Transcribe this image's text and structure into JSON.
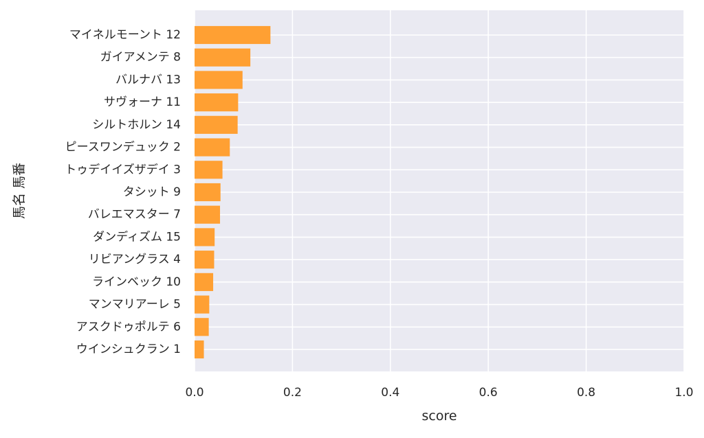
{
  "chart_data": {
    "type": "bar",
    "orientation": "horizontal",
    "categories": [
      "マイネルモーント 12",
      "ガイアメンテ 8",
      "バルナバ 13",
      "サヴォーナ 11",
      "シルトホルン 14",
      "ピースワンデュック 2",
      "トゥデイイズザデイ 3",
      "タシット 9",
      "バレエマスター 7",
      "ダンディズム 15",
      "リビアングラス 4",
      "ラインベック 10",
      "マンマリアーレ 5",
      "アスクドゥポルテ 6",
      "ウインシュクラン 1"
    ],
    "values": [
      0.155,
      0.114,
      0.098,
      0.089,
      0.088,
      0.072,
      0.057,
      0.053,
      0.052,
      0.041,
      0.04,
      0.038,
      0.03,
      0.029,
      0.019
    ],
    "xlabel": "score",
    "ylabel": "馬名 馬番",
    "xlim": [
      0,
      1.0
    ],
    "xticks": [
      0.0,
      0.2,
      0.4,
      0.6,
      0.8,
      1.0
    ],
    "xtick_labels": [
      "0.0",
      "0.2",
      "0.4",
      "0.6",
      "0.8",
      "1.0"
    ],
    "grid": true,
    "colors": {
      "bar": "#ffa033",
      "plot_background": "#eaeaf2",
      "grid": "#ffffff",
      "text": "#262626"
    }
  }
}
